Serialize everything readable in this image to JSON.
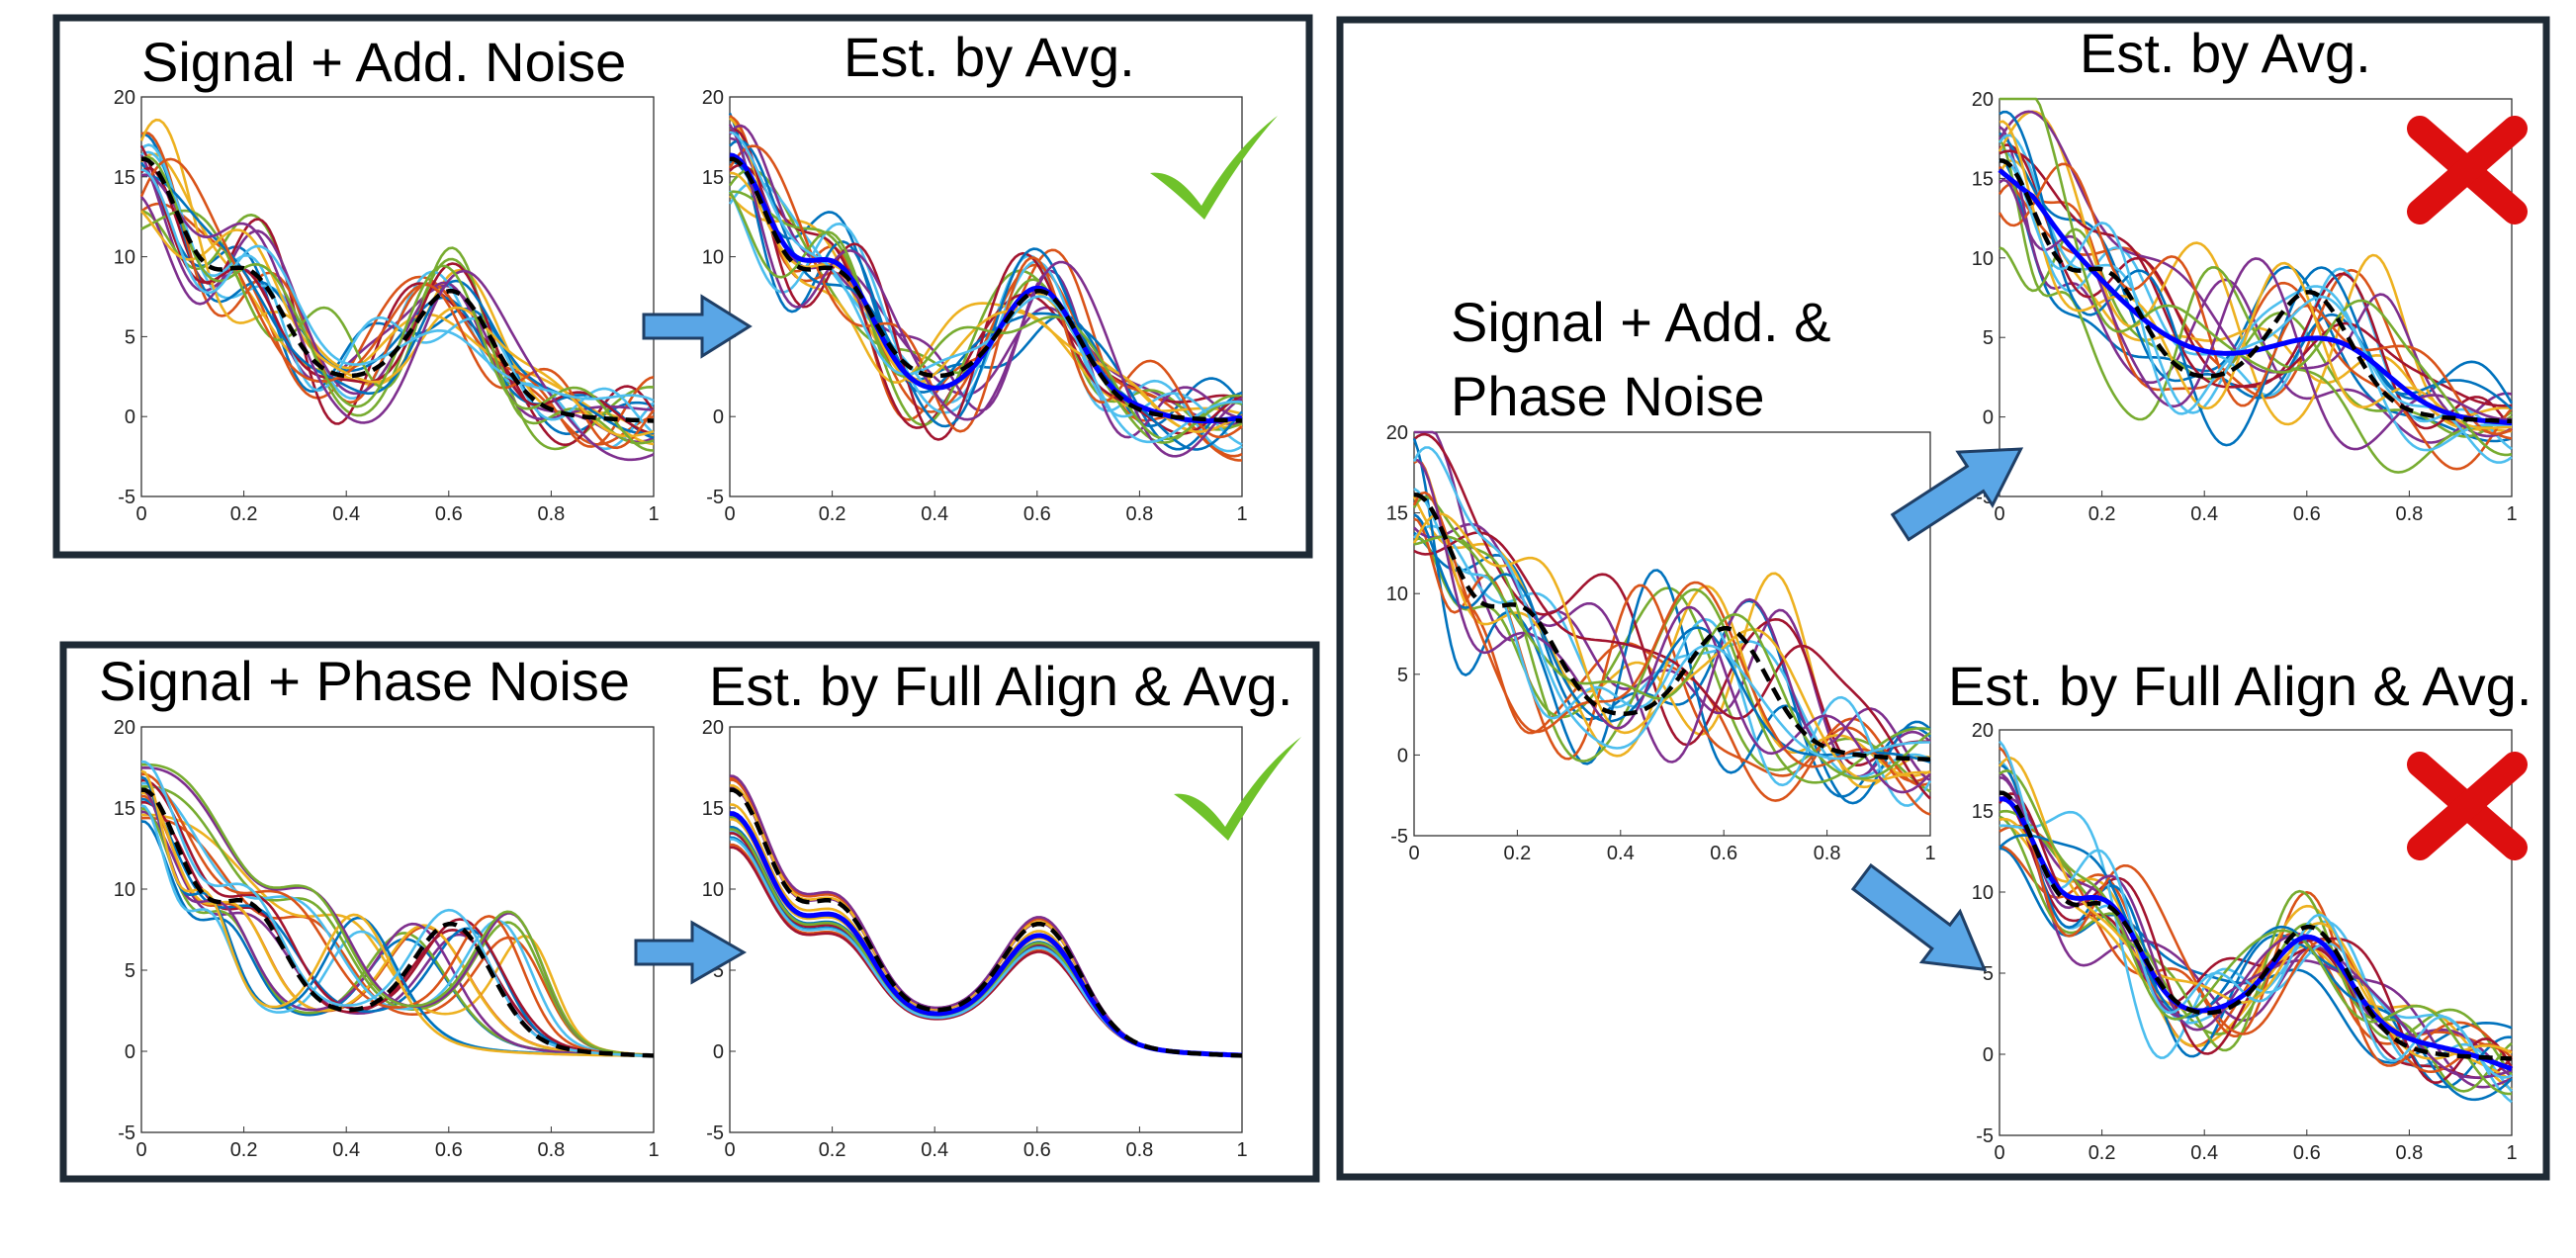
{
  "panels": {
    "p1": {
      "title": "Signal + Add. Noise"
    },
    "p2": {
      "title": "Est. by Avg.",
      "verdict": "check"
    },
    "p3": {
      "title": "Signal + Phase Noise"
    },
    "p4": {
      "title": "Est. by Full Align & Avg.",
      "verdict": "check"
    },
    "p5": {
      "title_lines": [
        "Signal + Add. &",
        "Phase  Noise"
      ]
    },
    "p6": {
      "title": "Est. by Avg.",
      "verdict": "cross"
    },
    "p7": {
      "title": "Est. by Full Align & Avg.",
      "verdict": "cross"
    }
  },
  "colors": {
    "frame": "#1e2a35",
    "arrow_fill": "#5aa6e6",
    "arrow_stroke": "#1f3f66",
    "check": "#6fc22a",
    "cross": "#dd0f0f",
    "estimate": "#0000ff",
    "truth": "#000000",
    "series_palette": [
      "#0072bd",
      "#d95319",
      "#edb120",
      "#7e2f8e",
      "#77ac30",
      "#4dbeee",
      "#a2142f"
    ]
  },
  "chart_data": [
    {
      "id": "p1",
      "type": "line",
      "title": "Signal + Add. Noise",
      "xlim": [
        0,
        1
      ],
      "ylim": [
        -5,
        20
      ],
      "xticks": [
        "0",
        "0.2",
        "0.4",
        "0.6",
        "0.8",
        "1"
      ],
      "yticks": [
        "-5",
        "0",
        "5",
        "10",
        "15",
        "20"
      ],
      "noise": "additive",
      "n_series": 20,
      "truth": "dashed-black",
      "estimate": "none"
    },
    {
      "id": "p2",
      "type": "line",
      "title": "Est. by Avg.",
      "xlim": [
        0,
        1
      ],
      "ylim": [
        -5,
        20
      ],
      "xticks": [
        "0",
        "0.2",
        "0.4",
        "0.6",
        "0.8",
        "1"
      ],
      "yticks": [
        "-5",
        "0",
        "5",
        "10",
        "15",
        "20"
      ],
      "noise": "additive",
      "n_series": 20,
      "truth": "dashed-black",
      "estimate": "mean"
    },
    {
      "id": "p3",
      "type": "line",
      "title": "Signal + Phase Noise",
      "xlim": [
        0,
        1
      ],
      "ylim": [
        -5,
        20
      ],
      "xticks": [
        "0",
        "0.2",
        "0.4",
        "0.6",
        "0.8",
        "1"
      ],
      "yticks": [
        "-5",
        "0",
        "5",
        "10",
        "15",
        "20"
      ],
      "noise": "phase",
      "n_series": 20,
      "truth": "dashed-black",
      "estimate": "none"
    },
    {
      "id": "p4",
      "type": "line",
      "title": "Est. by Full Align & Avg.",
      "xlim": [
        0,
        1
      ],
      "ylim": [
        -5,
        20
      ],
      "xticks": [
        "0",
        "0.2",
        "0.4",
        "0.6",
        "0.8",
        "1"
      ],
      "yticks": [
        "-5",
        "0",
        "5",
        "10",
        "15",
        "20"
      ],
      "noise": "aligned",
      "n_series": 20,
      "truth": "dashed-black",
      "estimate": "aligned-mean"
    },
    {
      "id": "p5",
      "type": "line",
      "title": "Signal + Add. & Phase  Noise",
      "xlim": [
        0,
        1
      ],
      "ylim": [
        -5,
        20
      ],
      "xticks": [
        "0",
        "0.2",
        "0.4",
        "0.6",
        "0.8",
        "1"
      ],
      "yticks": [
        "-5",
        "0",
        "5",
        "10",
        "15",
        "20"
      ],
      "noise": "both",
      "n_series": 20,
      "truth": "dashed-black",
      "estimate": "none"
    },
    {
      "id": "p6",
      "type": "line",
      "title": "Est. by Avg.",
      "xlim": [
        0,
        1
      ],
      "ylim": [
        -5,
        20
      ],
      "xticks": [
        "0",
        "0.2",
        "0.4",
        "0.6",
        "0.8",
        "1"
      ],
      "yticks": [
        "-5",
        "0",
        "5",
        "10",
        "15",
        "20"
      ],
      "noise": "both",
      "n_series": 20,
      "truth": "dashed-black",
      "estimate": "smooth-mean"
    },
    {
      "id": "p7",
      "type": "line",
      "title": "Est. by Full Align & Avg.",
      "xlim": [
        0,
        1
      ],
      "ylim": [
        -5,
        20
      ],
      "xticks": [
        "0",
        "0.2",
        "0.4",
        "0.6",
        "0.8",
        "1"
      ],
      "yticks": [
        "-5",
        "0",
        "5",
        "10",
        "15",
        "20"
      ],
      "noise": "aligned-additive",
      "n_series": 20,
      "truth": "dashed-black",
      "estimate": "aligned-mean"
    }
  ]
}
